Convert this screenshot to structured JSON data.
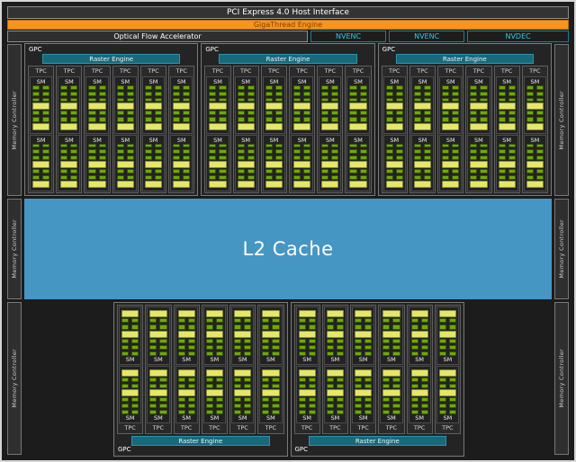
{
  "host_interface": "PCI Express 4.0 Host Interface",
  "gigathread_engine": "GigaThread Engine",
  "optical_flow_accelerator": "Optical Flow Accelerator",
  "codec_engines": [
    "NVENC",
    "NVENC",
    "NVDEC"
  ],
  "memory_controller": "Memory Controller",
  "l2_cache": "L2 Cache",
  "labels": {
    "gpc": "GPC",
    "raster_engine": "Raster Engine",
    "tpc": "TPC",
    "sm": "SM"
  },
  "structure": {
    "top_gpcs": 3,
    "bottom_gpcs": 2,
    "tpcs_per_gpc": 6,
    "sms_per_tpc": 2,
    "memory_controllers_per_side": 3
  },
  "colors": {
    "gigathread": "#F7941D",
    "raster": "#17697C",
    "l2": "#4596C3",
    "core_green": "#6FA80A",
    "cache_yellow": "#E4E768",
    "codec_text": "#35C8DC",
    "codec_border": "#1B7F93"
  }
}
